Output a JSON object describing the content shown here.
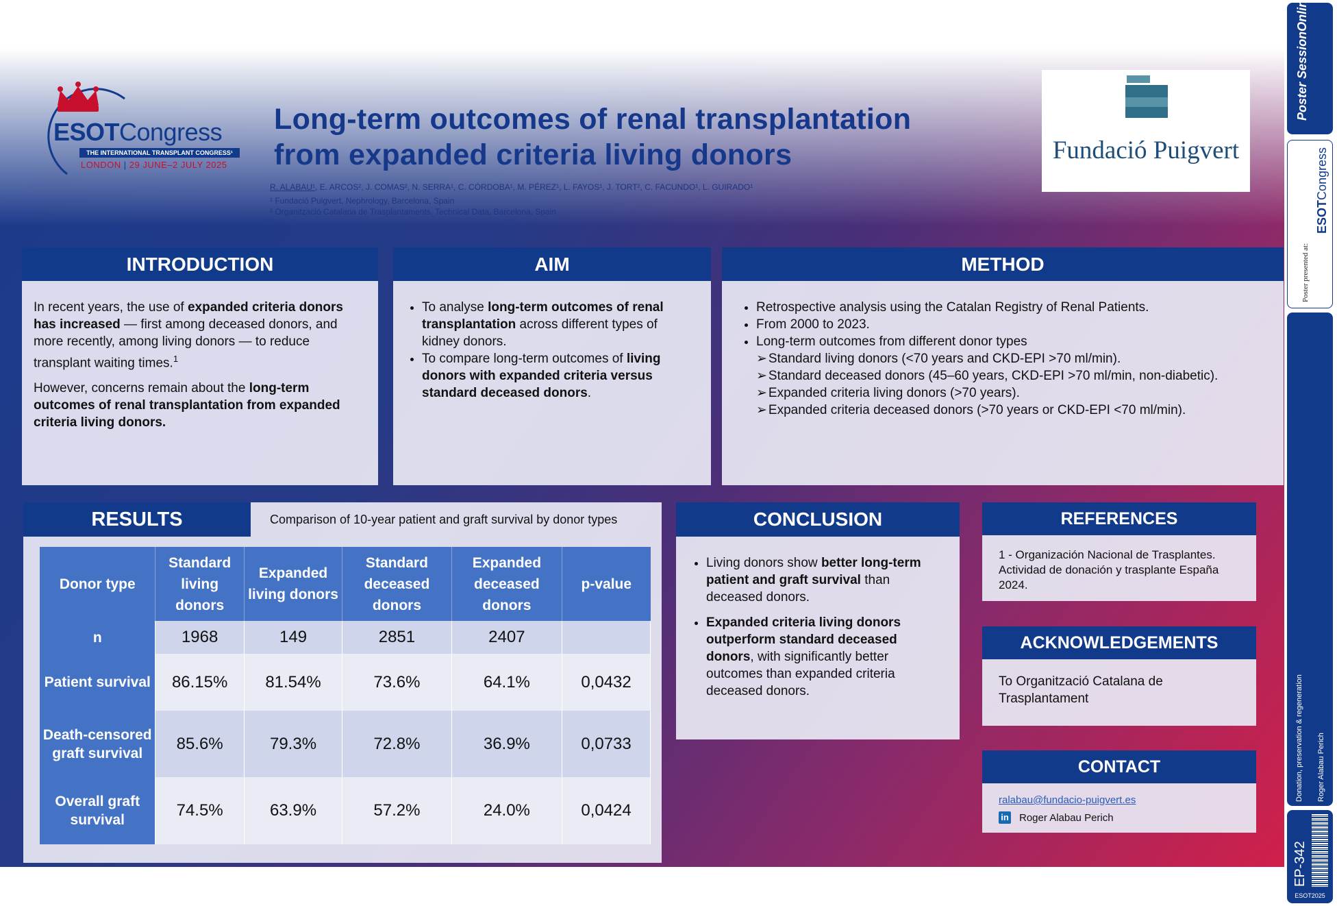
{
  "header": {
    "congress": {
      "name_bold": "ESOT",
      "name_light": "Congress",
      "tagline": "THE INTERNATIONAL TRANSPLANT CONGRESS¹",
      "city": "LONDON",
      "dates": "29 JUNE–2 JULY 2025"
    },
    "title_line1": "Long-term outcomes of renal transplantation",
    "title_line2": "from expanded criteria living donors",
    "first_author": "R. ALABAU¹",
    "coauthors": ", E. ARCOS², J. COMAS², N. SERRA¹, C. CÓRDOBA¹, M. PÉREZ¹, L. FAYOS¹, J. TORT², C. FACUNDO¹, L. GUIRADO¹",
    "affiliation1": "¹ Fundació Puigvert, Nephrology, Barcelona, Spain",
    "affiliation2": "² Organització Catalana de Trasplantaments, Technical Data, Barcelona, Spain",
    "institution_logo": "Fundació Puigvert"
  },
  "introduction": {
    "heading": "INTRODUCTION",
    "p1_a": "In recent years, the use of ",
    "p1_b": "expanded criteria donors has increased",
    "p1_c": " — first among deceased donors, and more recently, among living donors — to reduce transplant waiting times.",
    "p1_ref": "1",
    "p2_a": "However, concerns remain about the ",
    "p2_b": "long-term outcomes of renal transplantation from expanded criteria living donors."
  },
  "aim": {
    "heading": "AIM",
    "b1_a": "To analyse ",
    "b1_b": "long-term outcomes of renal transplantation",
    "b1_c": " across different types of kidney donors.",
    "b2_a": "To compare long-term outcomes of ",
    "b2_b": "living donors with expanded criteria versus standard deceased donors",
    "b2_c": "."
  },
  "method": {
    "heading": "METHOD",
    "bullets": [
      "Retrospective analysis using the Catalan Registry of Renal Patients.",
      "From 2000 to 2023.",
      "Long-term outcomes from different donor types"
    ],
    "subitems": [
      "Standard living donors (<70 years and CKD-EPI >70 ml/min).",
      "Standard deceased donors (45–60 years, CKD-EPI >70 ml/min, non-diabetic).",
      "Expanded criteria living donors (>70 years).",
      "Expanded criteria deceased donors (>70 years or CKD-EPI <70 ml/min)."
    ]
  },
  "results": {
    "heading": "RESULTS",
    "caption": "Comparison of 10-year patient and graft survival by donor types",
    "table": {
      "headers": [
        "Donor type",
        "Standard living donors",
        "Expanded living donors",
        "Standard deceased donors",
        "Expanded deceased donors",
        "p-value"
      ],
      "rows": [
        {
          "label": "n",
          "cells": [
            "1968",
            "149",
            "2851",
            "2407",
            ""
          ]
        },
        {
          "label": "Patient survival",
          "cells": [
            "86.15%",
            "81.54%",
            "73.6%",
            "64.1%",
            "0,0432"
          ]
        },
        {
          "label": "Death-censored graft survival",
          "cells": [
            "85.6%",
            "79.3%",
            "72.8%",
            "36.9%",
            "0,0733"
          ]
        },
        {
          "label": "Overall graft survival",
          "cells": [
            "74.5%",
            "63.9%",
            "57.2%",
            "24.0%",
            "0,0424"
          ]
        }
      ]
    }
  },
  "conclusion": {
    "heading": "CONCLUSION",
    "b1_a": "Living donors show ",
    "b1_b": "better long-term patient and graft survival",
    "b1_c": " than deceased donors.",
    "b2_a": "Expanded criteria living donors outperform standard deceased donors",
    "b2_b": ", with significantly better outcomes than expanded criteria deceased donors."
  },
  "references": {
    "heading": "REFERENCES",
    "text": "1 - Organización Nacional de Trasplantes. Actividad de donación y trasplante España 2024."
  },
  "acknowledgements": {
    "heading": "ACKNOWLEDGEMENTS",
    "text": "To Organització Catalana de Trasplantament"
  },
  "contact": {
    "heading": "CONTACT",
    "email": "ralabau@fundacio-puigvert.es",
    "linkedin_icon": "linkedin-icon",
    "linkedin_name": "Roger Alabau Perich"
  },
  "sidebar": {
    "brand_a": "Poster",
    "brand_b": "SessionOnline",
    "presented_at": "Poster presented at:",
    "congress_bold": "ESOT",
    "congress_light": "Congress",
    "topic": "Donation, preservation & regeneration",
    "presenter": "Roger Alabau Perich",
    "poster_id": "EP-342",
    "event_code": "ESOT2025"
  },
  "colors": {
    "navy": "#123a8a",
    "table_blue": "#4472c4",
    "accent_red": "#c8102e"
  }
}
